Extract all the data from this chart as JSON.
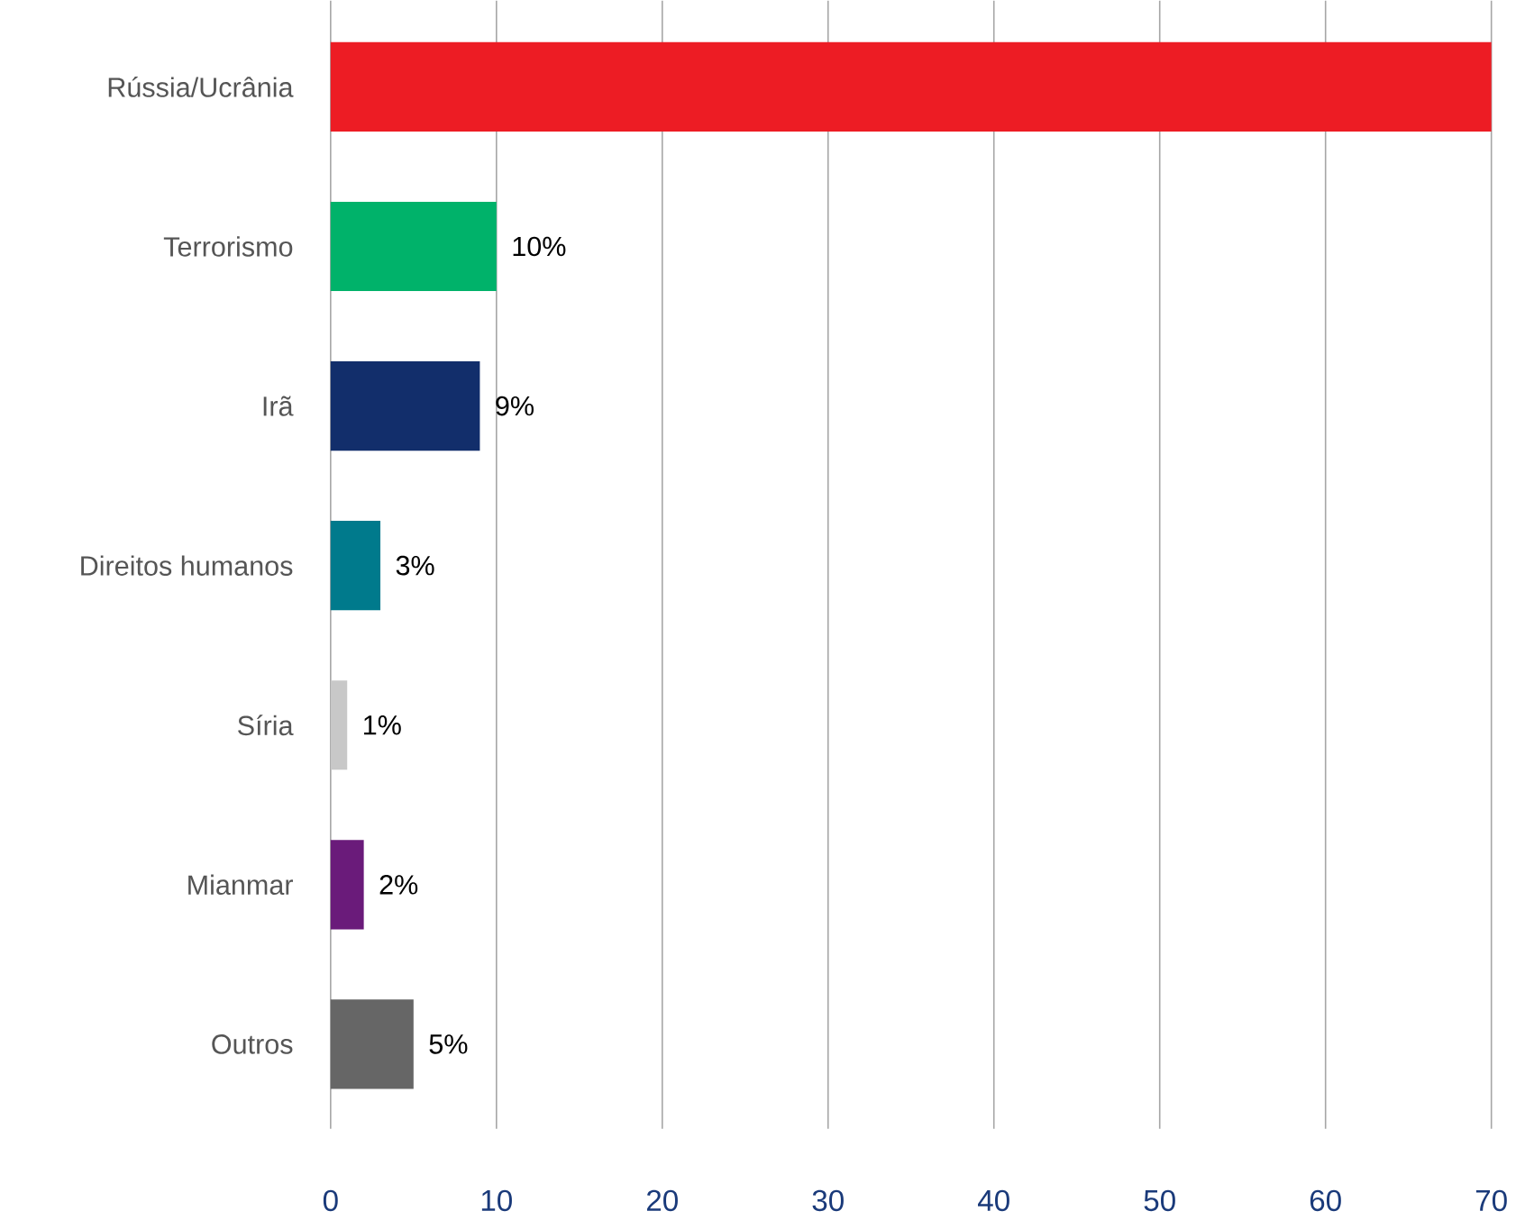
{
  "chart_data": {
    "type": "bar",
    "orientation": "horizontal",
    "categories": [
      "Rússia/Ucrânia",
      "Terrorismo",
      "Irã",
      "Direitos humanos",
      "Síria",
      "Mianmar",
      "Outros"
    ],
    "values": [
      70,
      10,
      9,
      3,
      1,
      2,
      5
    ],
    "value_labels": [
      null,
      "10%",
      "9%",
      "3%",
      "1%",
      "2%",
      "5%"
    ],
    "colors": [
      "#ed1c24",
      "#00b26a",
      "#122e6b",
      "#007a8c",
      "#c8c8c8",
      "#6a1b7a",
      "#666666"
    ],
    "xlim": [
      0,
      70
    ],
    "xticks": [
      0,
      10,
      20,
      30,
      40,
      50,
      60,
      70
    ],
    "grid": "x"
  }
}
